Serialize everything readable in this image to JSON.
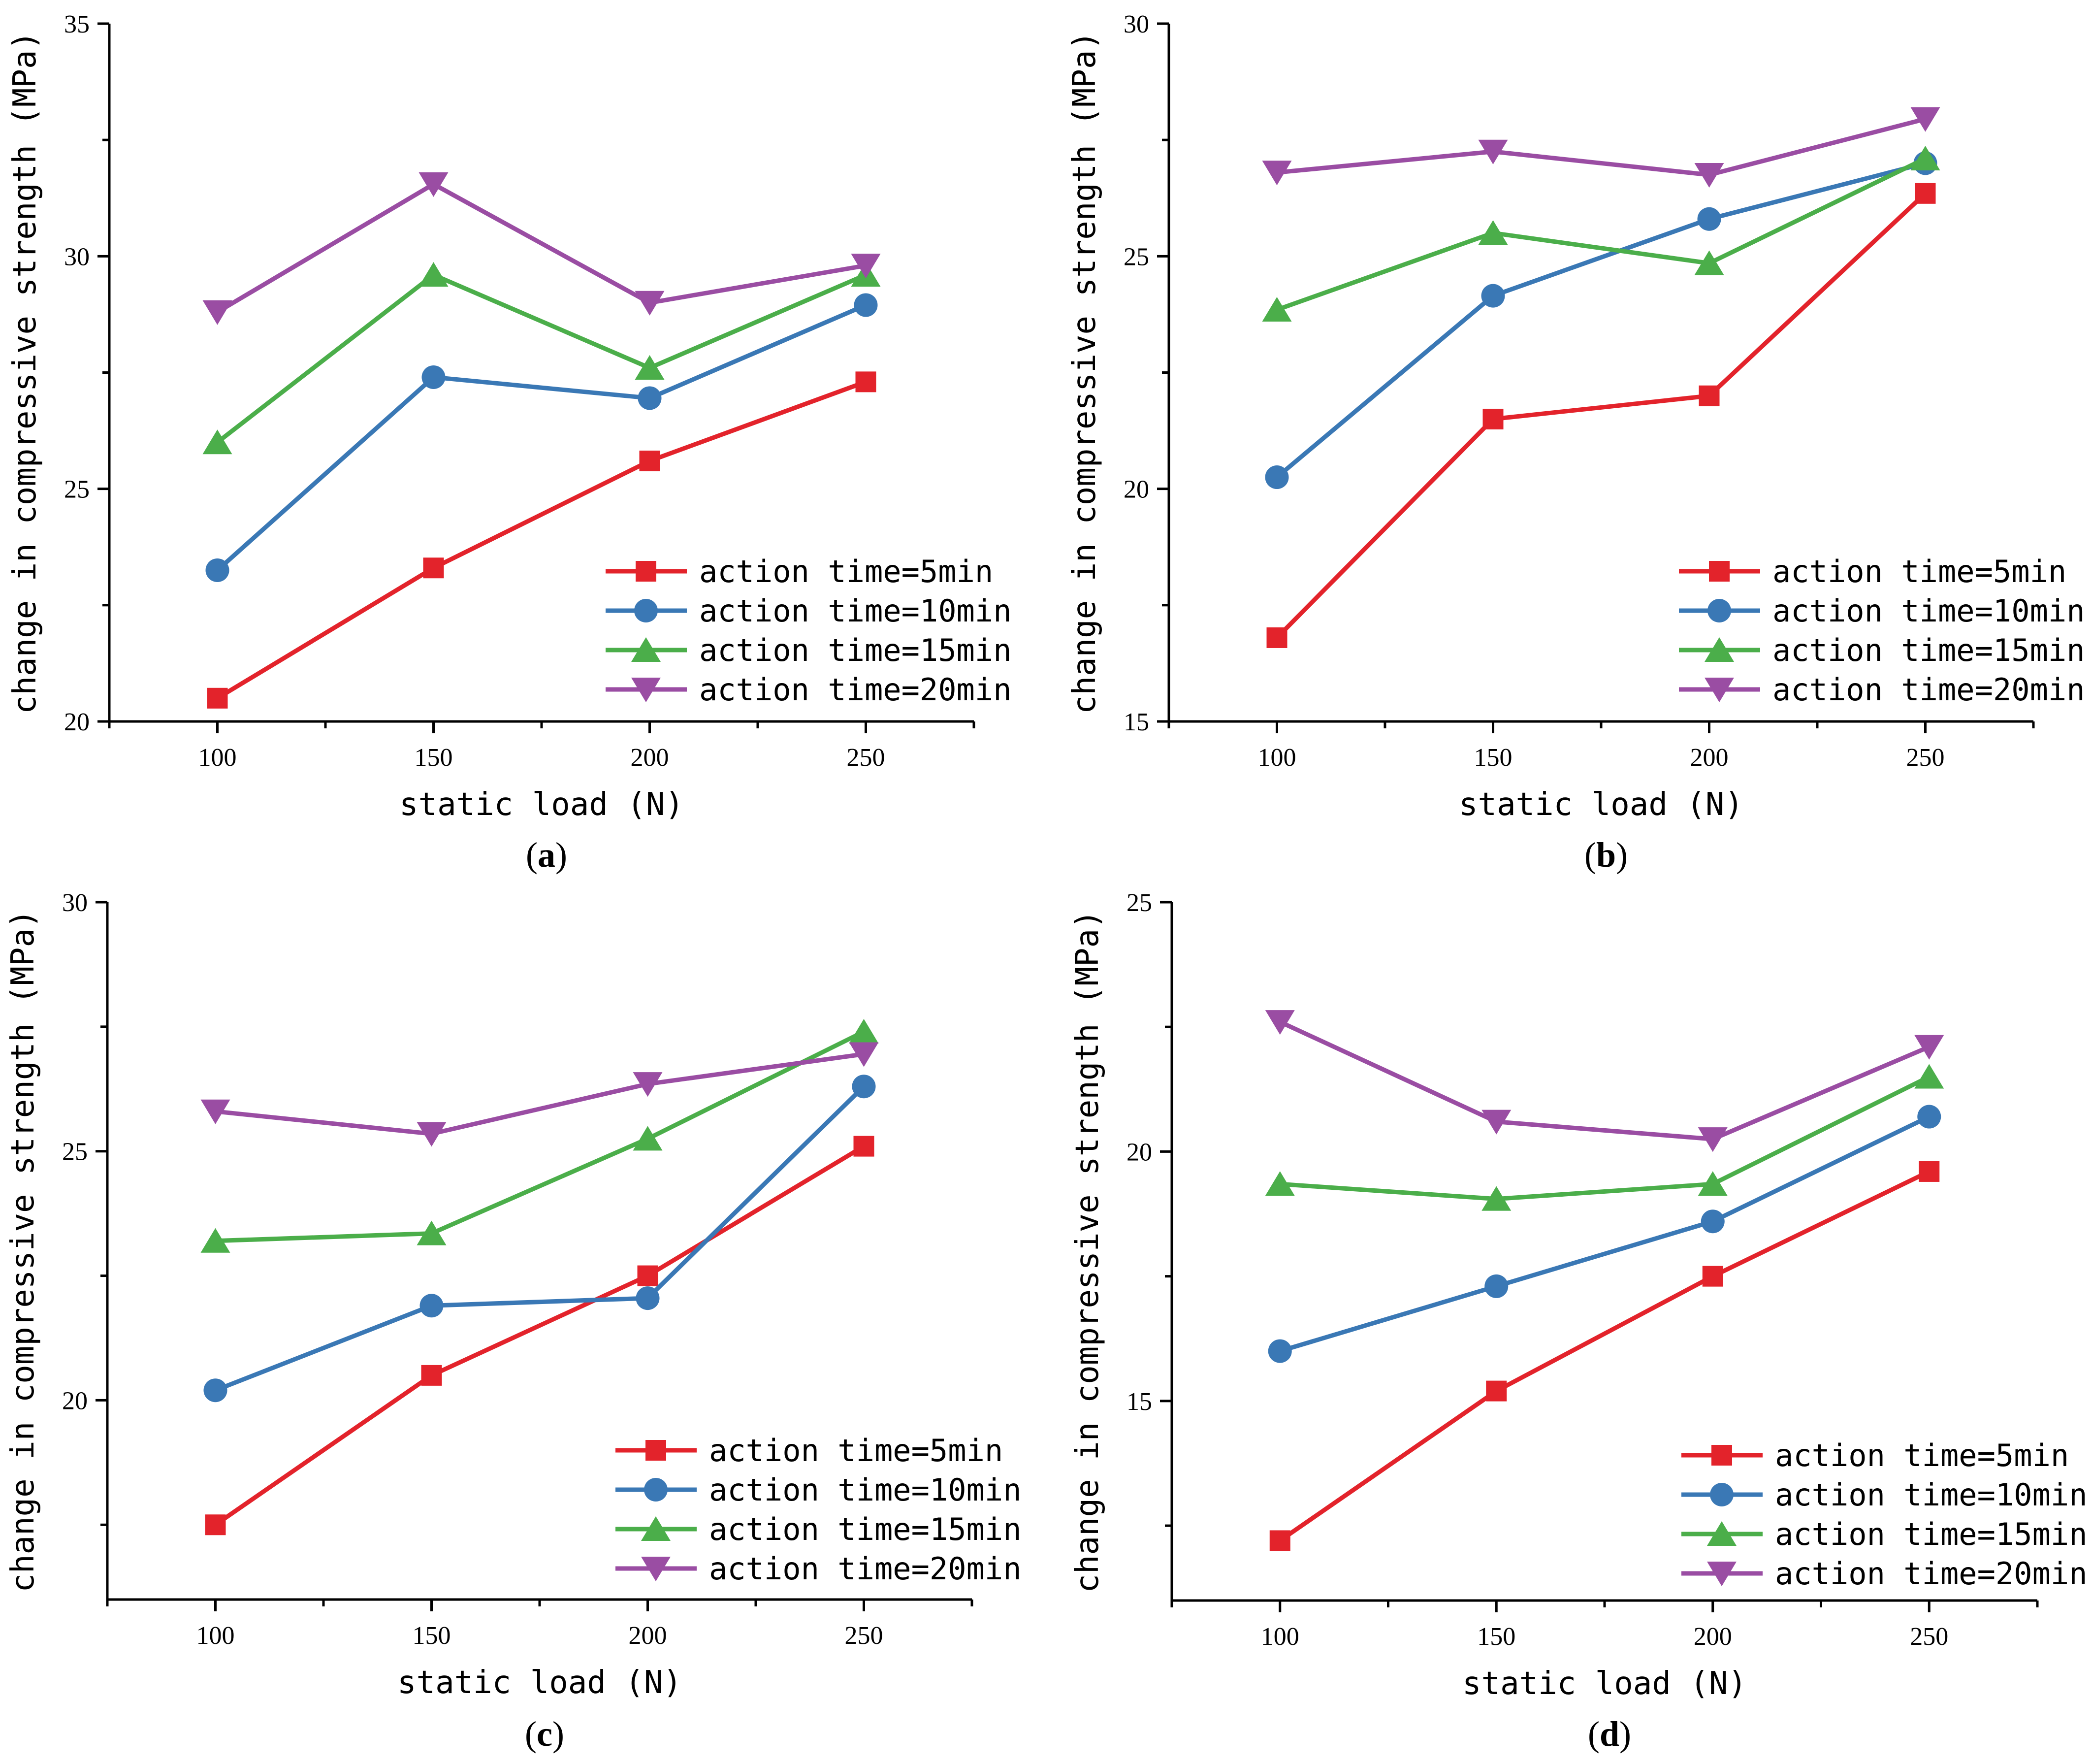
{
  "series_colors": {
    "action time=5min": "#e3232b",
    "action time=10min": "#3a78b5",
    "action time=15min": "#4bae4a",
    "action time=20min": "#9a4da3"
  },
  "series_markers": {
    "action time=5min": "square",
    "action time=10min": "circle",
    "action time=15min": "triangle-up",
    "action time=20min": "triangle-down"
  },
  "chart_data": [
    {
      "panel": "a",
      "panel_label": "a",
      "type": "line",
      "xlabel": "static load (N)",
      "ylabel": "change in compressive strength (MPa)",
      "x": [
        100,
        150,
        200,
        250
      ],
      "xticks": [
        "100",
        "150",
        "200",
        "250"
      ],
      "xlim": [
        75,
        275
      ],
      "ylim": [
        20,
        35
      ],
      "yticks": [
        20,
        25,
        30,
        35
      ],
      "ytick_labels": [
        "20",
        "25",
        "30",
        "35"
      ],
      "legend_position": "bottom-right",
      "series": [
        {
          "name": "action time=5min",
          "values": [
            20.5,
            23.3,
            25.6,
            27.3
          ]
        },
        {
          "name": "action time=10min",
          "values": [
            23.25,
            27.4,
            26.95,
            28.95
          ]
        },
        {
          "name": "action time=15min",
          "values": [
            26.0,
            29.6,
            27.6,
            29.6
          ]
        },
        {
          "name": "action time=20min",
          "values": [
            28.8,
            31.55,
            29.0,
            29.8
          ]
        }
      ]
    },
    {
      "panel": "b",
      "panel_label": "b",
      "type": "line",
      "xlabel": "static load (N)",
      "ylabel": "change in compressive strength (MPa)",
      "x": [
        100,
        150,
        200,
        250
      ],
      "xticks": [
        "100",
        "150",
        "200",
        "250"
      ],
      "xlim": [
        75,
        275
      ],
      "ylim": [
        15,
        30
      ],
      "yticks": [
        15,
        20,
        25,
        30
      ],
      "ytick_labels": [
        "15",
        "20",
        "25",
        "30"
      ],
      "legend_position": "bottom-right",
      "series": [
        {
          "name": "action time=5min",
          "values": [
            16.8,
            21.5,
            22.0,
            26.35
          ]
        },
        {
          "name": "action time=10min",
          "values": [
            20.25,
            24.15,
            25.8,
            27.0
          ]
        },
        {
          "name": "action time=15min",
          "values": [
            23.85,
            25.5,
            24.85,
            27.1
          ]
        },
        {
          "name": "action time=20min",
          "values": [
            26.8,
            27.25,
            26.75,
            27.95
          ]
        }
      ]
    },
    {
      "panel": "c",
      "panel_label": "c",
      "type": "line",
      "xlabel": "static load (N)",
      "ylabel": "change in compressive strength (MPa)",
      "x": [
        100,
        150,
        200,
        250
      ],
      "xticks": [
        "100",
        "150",
        "200",
        "250"
      ],
      "xlim": [
        75,
        275
      ],
      "ylim": [
        16,
        30
      ],
      "yticks": [
        20,
        25,
        30
      ],
      "ytick_labels": [
        "20",
        "25",
        "30"
      ],
      "legend_position": "bottom-right",
      "series": [
        {
          "name": "action time=5min",
          "values": [
            17.5,
            20.5,
            22.5,
            25.1
          ]
        },
        {
          "name": "action time=10min",
          "values": [
            20.2,
            21.9,
            22.05,
            26.3
          ]
        },
        {
          "name": "action time=15min",
          "values": [
            23.2,
            23.35,
            25.25,
            27.4
          ]
        },
        {
          "name": "action time=20min",
          "values": [
            25.8,
            25.35,
            26.35,
            26.95
          ]
        }
      ]
    },
    {
      "panel": "d",
      "panel_label": "d",
      "type": "line",
      "xlabel": "static load (N)",
      "ylabel": "change in compressive strength (MPa)",
      "x": [
        100,
        150,
        200,
        250
      ],
      "xticks": [
        "100",
        "150",
        "200",
        "250"
      ],
      "xlim": [
        75,
        275
      ],
      "ylim": [
        11,
        25
      ],
      "yticks": [
        15,
        20,
        25
      ],
      "ytick_labels": [
        "15",
        "20",
        "25"
      ],
      "legend_position": "bottom-right",
      "series": [
        {
          "name": "action time=5min",
          "values": [
            12.2,
            15.2,
            17.5,
            19.6
          ]
        },
        {
          "name": "action time=10min",
          "values": [
            16.0,
            17.3,
            18.6,
            20.7
          ]
        },
        {
          "name": "action time=15min",
          "values": [
            19.35,
            19.05,
            19.35,
            21.5
          ]
        },
        {
          "name": "action time=20min",
          "values": [
            22.6,
            20.6,
            20.25,
            22.1
          ]
        }
      ]
    }
  ]
}
